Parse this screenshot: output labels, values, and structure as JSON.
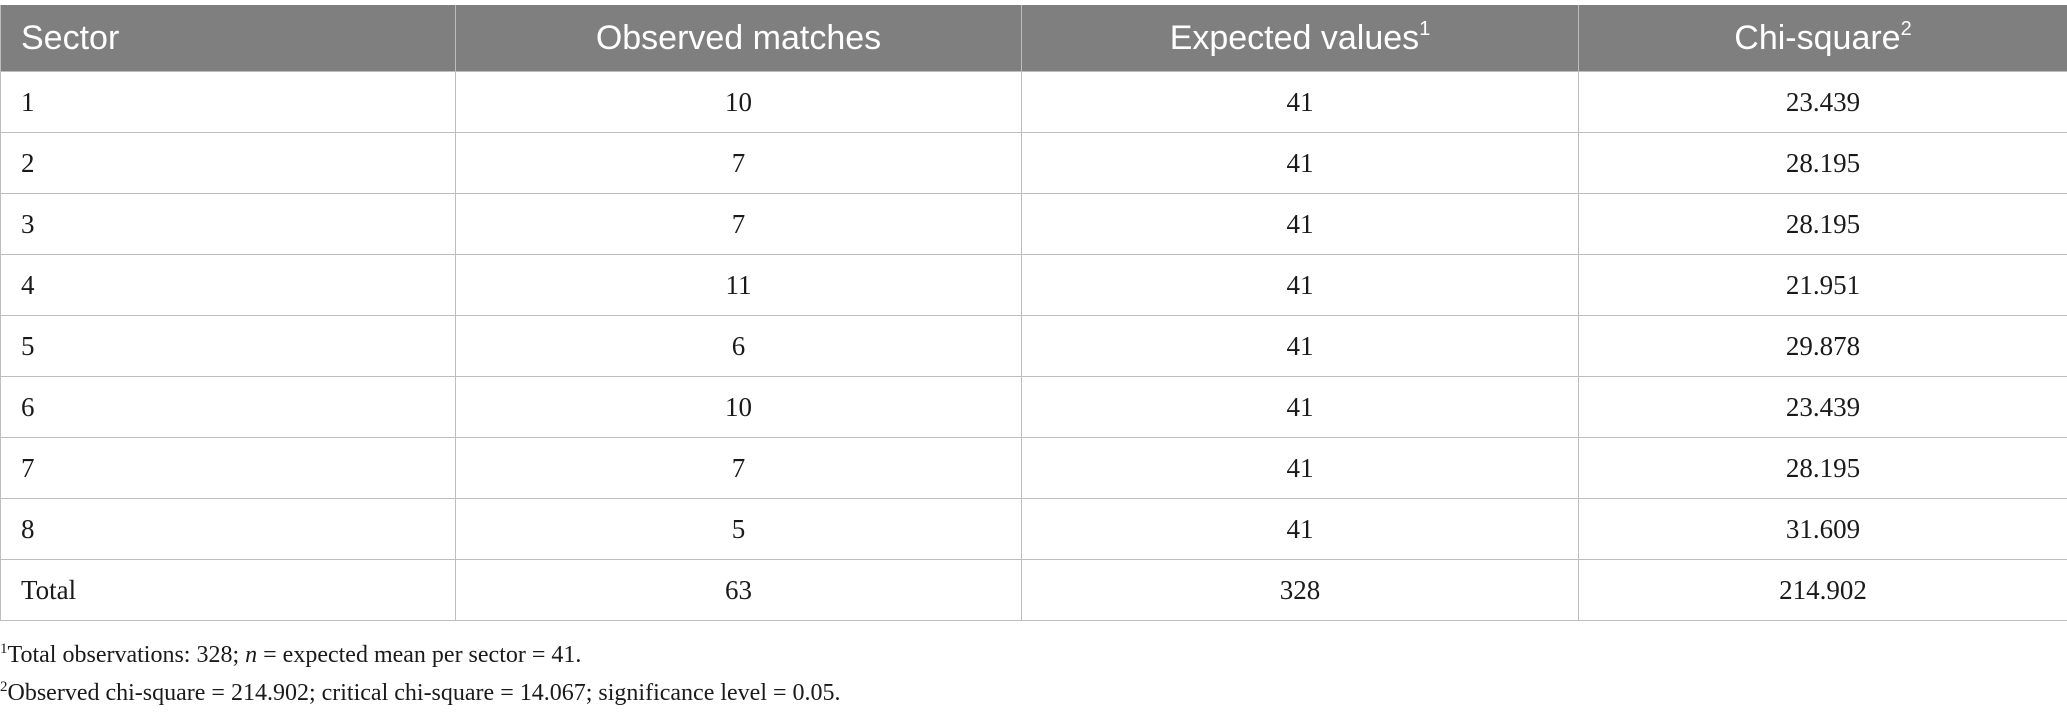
{
  "table": {
    "headers": [
      {
        "text": "Sector",
        "sup": ""
      },
      {
        "text": "Observed matches",
        "sup": ""
      },
      {
        "text": "Expected values",
        "sup": "1"
      },
      {
        "text": "Chi-square",
        "sup": "2"
      }
    ],
    "rows": [
      [
        "1",
        "10",
        "41",
        "23.439"
      ],
      [
        "2",
        "7",
        "41",
        "28.195"
      ],
      [
        "3",
        "7",
        "41",
        "28.195"
      ],
      [
        "4",
        "11",
        "41",
        "21.951"
      ],
      [
        "5",
        "6",
        "41",
        "29.878"
      ],
      [
        "6",
        "10",
        "41",
        "23.439"
      ],
      [
        "7",
        "7",
        "41",
        "28.195"
      ],
      [
        "8",
        "5",
        "41",
        "31.609"
      ],
      [
        "Total",
        "63",
        "328",
        "214.902"
      ]
    ]
  },
  "notes": {
    "note1": {
      "marker": "1",
      "prefix": "Total observations: 328; ",
      "italic": "n",
      "suffix": " = expected mean per sector = 41."
    },
    "note2": {
      "marker": "2",
      "text": "Observed chi-square = 214.902; critical chi-square = 14.067; significance level = 0.05."
    }
  }
}
